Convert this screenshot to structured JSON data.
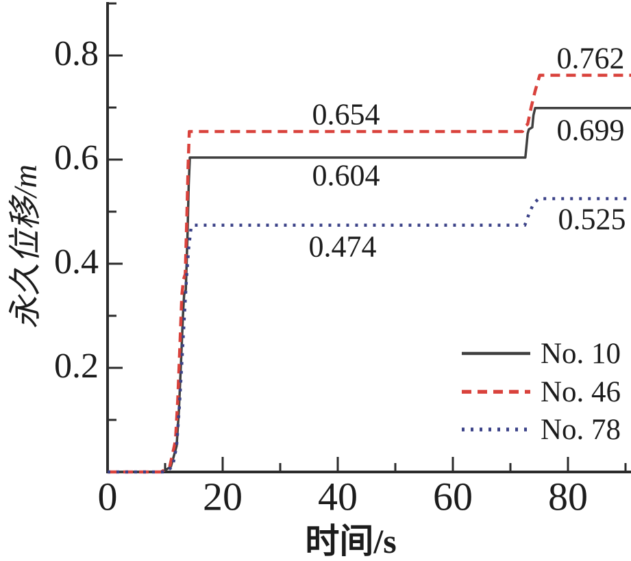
{
  "chart_data": {
    "type": "line",
    "title": "",
    "xlabel": "时间/s",
    "ylabel": "永久位移/m",
    "xlim": [
      0,
      91
    ],
    "ylim": [
      0,
      0.905
    ],
    "grid": false,
    "legend_position": "lower right",
    "axis_color": "#2b2b2b",
    "x_tick_labels": [
      "0",
      "20",
      "40",
      "60",
      "80"
    ],
    "x_major_ticks": [
      20,
      40,
      60,
      80
    ],
    "x_minor_ticks": [
      10,
      30,
      50,
      70,
      90
    ],
    "y_tick_labels": [
      "0.8",
      "0.6",
      "0.4",
      "0.2"
    ],
    "y_major_ticks": [
      0.2,
      0.4,
      0.6,
      0.8
    ],
    "y_minor_ticks": [
      0.1,
      0.3,
      0.5,
      0.7,
      0.9
    ],
    "series": [
      {
        "name": "No. 10",
        "color": "#3f3f3f",
        "line_style": "solid",
        "first_plateau": 0.604,
        "second_plateau": 0.699,
        "points": [
          [
            0,
            0
          ],
          [
            9.5,
            0
          ],
          [
            11.0,
            0.01
          ],
          [
            12.0,
            0.05
          ],
          [
            12.4,
            0.12
          ],
          [
            12.8,
            0.22
          ],
          [
            13.1,
            0.3
          ],
          [
            13.3,
            0.34
          ],
          [
            13.6,
            0.35
          ],
          [
            13.9,
            0.46
          ],
          [
            14.1,
            0.55
          ],
          [
            14.3,
            0.604
          ],
          [
            72.6,
            0.604
          ],
          [
            73.0,
            0.65
          ],
          [
            73.2,
            0.658
          ],
          [
            73.8,
            0.662
          ],
          [
            74.0,
            0.685
          ],
          [
            74.3,
            0.699
          ],
          [
            91,
            0.699
          ]
        ]
      },
      {
        "name": "No. 46",
        "color": "#d9423c",
        "line_style": "dashed",
        "first_plateau": 0.654,
        "second_plateau": 0.762,
        "points": [
          [
            0,
            0
          ],
          [
            9.3,
            0
          ],
          [
            10.8,
            0.01
          ],
          [
            11.8,
            0.06
          ],
          [
            12.2,
            0.14
          ],
          [
            12.6,
            0.25
          ],
          [
            12.9,
            0.34
          ],
          [
            13.2,
            0.37
          ],
          [
            13.5,
            0.38
          ],
          [
            13.8,
            0.5
          ],
          [
            14.0,
            0.59
          ],
          [
            14.2,
            0.654
          ],
          [
            72.1,
            0.654
          ],
          [
            72.5,
            0.664
          ],
          [
            73.0,
            0.668
          ],
          [
            73.6,
            0.7
          ],
          [
            74.3,
            0.732
          ],
          [
            75.1,
            0.762
          ],
          [
            91,
            0.762
          ]
        ]
      },
      {
        "name": "No. 78",
        "color": "#3a4187",
        "line_style": "dotted",
        "first_plateau": 0.474,
        "second_plateau": 0.525,
        "points": [
          [
            0,
            0
          ],
          [
            10.0,
            0
          ],
          [
            11.3,
            0.01
          ],
          [
            12.0,
            0.05
          ],
          [
            12.5,
            0.13
          ],
          [
            12.9,
            0.21
          ],
          [
            13.3,
            0.29
          ],
          [
            13.7,
            0.37
          ],
          [
            14.1,
            0.43
          ],
          [
            14.5,
            0.468
          ],
          [
            14.8,
            0.474
          ],
          [
            72.5,
            0.474
          ],
          [
            73.2,
            0.495
          ],
          [
            74.0,
            0.515
          ],
          [
            74.9,
            0.525
          ],
          [
            91,
            0.525
          ]
        ]
      }
    ],
    "annotations": [
      {
        "text": "0.654",
        "value": 0.654,
        "series": "No. 46"
      },
      {
        "text": "0.604",
        "value": 0.604,
        "series": "No. 10"
      },
      {
        "text": "0.474",
        "value": 0.474,
        "series": "No. 78"
      },
      {
        "text": "0.762",
        "value": 0.762,
        "series": "No. 46"
      },
      {
        "text": "0.699",
        "value": 0.699,
        "series": "No. 10"
      },
      {
        "text": "0.525",
        "value": 0.525,
        "series": "No. 78"
      }
    ]
  }
}
